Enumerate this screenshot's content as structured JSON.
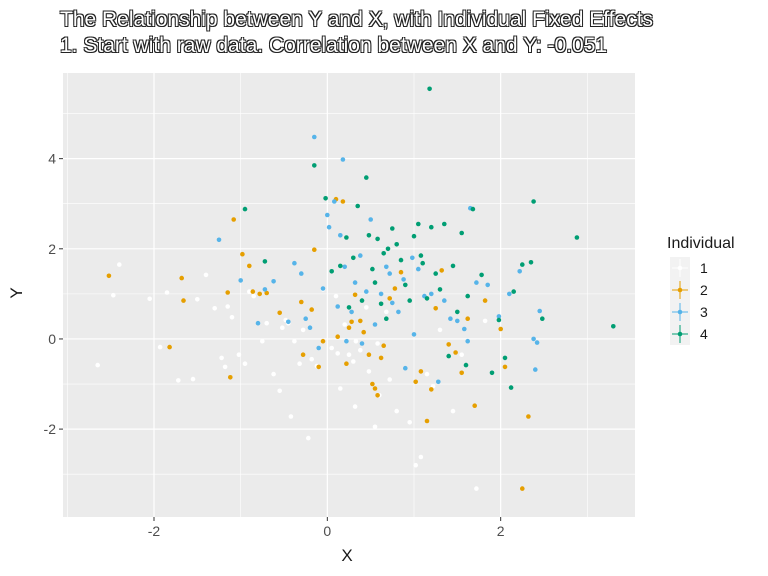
{
  "chart_data": {
    "type": "scatter",
    "title": "The Relationship between Y and X, with Individual Fixed Effects",
    "subtitle": "1. Start with raw data. Correlation between X and Y: -0.051",
    "xlabel": "X",
    "ylabel": "Y",
    "xlim": [
      -3.05,
      3.55
    ],
    "ylim": [
      -3.95,
      5.9
    ],
    "xticks": [
      -2,
      0,
      2
    ],
    "yticks": [
      -2,
      0,
      2,
      4
    ],
    "grid": true,
    "legend": {
      "title": "Individual",
      "placement": "right"
    },
    "colors": {
      "panel": "#ebebeb",
      "grid": "#ffffff"
    },
    "series": [
      {
        "name": "1",
        "color": "#ffffff",
        "points": [
          [
            -2.65,
            -0.58
          ],
          [
            -2.47,
            0.97
          ],
          [
            -2.4,
            1.65
          ],
          [
            -2.05,
            0.89
          ],
          [
            -1.93,
            -0.18
          ],
          [
            -1.85,
            1.03
          ],
          [
            -1.72,
            -0.92
          ],
          [
            -1.55,
            -0.89
          ],
          [
            -1.5,
            0.88
          ],
          [
            -1.4,
            1.42
          ],
          [
            -1.3,
            0.68
          ],
          [
            -1.22,
            -0.42
          ],
          [
            -1.18,
            -0.62
          ],
          [
            -1.1,
            0.48
          ],
          [
            -1.02,
            -0.35
          ],
          [
            -0.9,
            1.05
          ],
          [
            -0.85,
            0.95
          ],
          [
            -0.75,
            -0.05
          ],
          [
            -0.7,
            0.35
          ],
          [
            -0.62,
            -0.78
          ],
          [
            -0.55,
            -1.15
          ],
          [
            -0.52,
            0.25
          ],
          [
            -0.48,
            0.42
          ],
          [
            -0.45,
            0.35
          ],
          [
            -0.38,
            -0.05
          ],
          [
            -0.32,
            -0.55
          ],
          [
            -0.28,
            0.2
          ],
          [
            -0.22,
            -2.2
          ],
          [
            -0.18,
            -0.45
          ],
          [
            -0.12,
            -0.6
          ],
          [
            -0.05,
            1.1
          ],
          [
            0.05,
            -0.2
          ],
          [
            0.1,
            0.95
          ],
          [
            0.15,
            -1.1
          ],
          [
            0.2,
            0.32
          ],
          [
            0.25,
            -0.35
          ],
          [
            0.3,
            -0.5
          ],
          [
            0.33,
            -0.05
          ],
          [
            0.38,
            -0.25
          ],
          [
            0.45,
            0.7
          ],
          [
            0.55,
            -1.95
          ],
          [
            0.58,
            -0.1
          ],
          [
            0.68,
            0.6
          ],
          [
            0.72,
            -0.9
          ],
          [
            0.8,
            -1.6
          ],
          [
            0.95,
            -1.85
          ],
          [
            1.02,
            -2.8
          ],
          [
            1.08,
            -2.62
          ],
          [
            1.15,
            -0.78
          ],
          [
            1.22,
            -1.05
          ],
          [
            1.3,
            0.2
          ],
          [
            1.45,
            -1.6
          ],
          [
            1.55,
            -0.35
          ],
          [
            1.72,
            -3.32
          ],
          [
            1.82,
            0.4
          ],
          [
            0.32,
            -1.5
          ],
          [
            -0.42,
            -1.72
          ],
          [
            0.6,
            -1.25
          ],
          [
            -1.15,
            0.72
          ],
          [
            -0.95,
            -0.55
          ],
          [
            0.12,
            -0.32
          ],
          [
            0.48,
            -0.72
          ]
        ]
      },
      {
        "name": "2",
        "color": "#e69f00",
        "points": [
          [
            -2.52,
            1.4
          ],
          [
            -1.82,
            -0.18
          ],
          [
            -1.68,
            1.35
          ],
          [
            -1.66,
            0.85
          ],
          [
            -1.15,
            1.03
          ],
          [
            -1.12,
            -0.85
          ],
          [
            -1.08,
            2.65
          ],
          [
            -0.98,
            1.88
          ],
          [
            -0.9,
            1.62
          ],
          [
            -0.86,
            1.05
          ],
          [
            -0.78,
            1.0
          ],
          [
            -0.7,
            1.02
          ],
          [
            -0.55,
            0.58
          ],
          [
            -0.3,
            0.82
          ],
          [
            -0.28,
            -0.35
          ],
          [
            -0.18,
            0.65
          ],
          [
            -0.15,
            1.98
          ],
          [
            -0.1,
            -0.62
          ],
          [
            -0.05,
            -0.05
          ],
          [
            0.1,
            3.1
          ],
          [
            0.12,
            0.05
          ],
          [
            0.22,
            -0.55
          ],
          [
            0.25,
            0.25
          ],
          [
            0.28,
            0.38
          ],
          [
            0.32,
            0.98
          ],
          [
            0.38,
            0.4
          ],
          [
            0.42,
            0.15
          ],
          [
            0.48,
            -0.35
          ],
          [
            0.55,
            -1.1
          ],
          [
            0.58,
            -1.25
          ],
          [
            0.62,
            -0.42
          ],
          [
            0.65,
            -0.15
          ],
          [
            0.72,
            0.9
          ],
          [
            0.78,
            1.12
          ],
          [
            0.85,
            1.48
          ],
          [
            1.02,
            -0.95
          ],
          [
            1.08,
            -0.72
          ],
          [
            1.15,
            -1.82
          ],
          [
            1.2,
            -1.12
          ],
          [
            1.25,
            0.68
          ],
          [
            1.32,
            1.52
          ],
          [
            1.4,
            -0.12
          ],
          [
            1.48,
            -0.3
          ],
          [
            1.55,
            -0.75
          ],
          [
            1.62,
            0.45
          ],
          [
            1.7,
            -1.48
          ],
          [
            2.0,
            0.22
          ],
          [
            2.05,
            -0.62
          ],
          [
            2.25,
            -3.32
          ],
          [
            2.32,
            -1.72
          ],
          [
            0.18,
            3.05
          ],
          [
            0.52,
            -1.0
          ],
          [
            1.82,
            0.85
          ]
        ]
      },
      {
        "name": "3",
        "color": "#56b4e9",
        "points": [
          [
            -1.25,
            2.2
          ],
          [
            -1.0,
            1.3
          ],
          [
            -0.8,
            0.35
          ],
          [
            -0.62,
            1.28
          ],
          [
            -0.45,
            0.38
          ],
          [
            -0.38,
            1.68
          ],
          [
            -0.3,
            1.45
          ],
          [
            -0.25,
            0.45
          ],
          [
            -0.2,
            0.25
          ],
          [
            -0.15,
            4.48
          ],
          [
            -0.05,
            1.12
          ],
          [
            0.0,
            2.75
          ],
          [
            0.02,
            2.48
          ],
          [
            0.08,
            3.05
          ],
          [
            0.12,
            0.72
          ],
          [
            0.15,
            2.3
          ],
          [
            0.18,
            3.98
          ],
          [
            0.2,
            1.6
          ],
          [
            0.22,
            -0.05
          ],
          [
            0.28,
            0.6
          ],
          [
            0.32,
            1.25
          ],
          [
            0.38,
            1.85
          ],
          [
            0.45,
            1.05
          ],
          [
            0.5,
            2.65
          ],
          [
            0.55,
            0.32
          ],
          [
            0.62,
            1.0
          ],
          [
            0.68,
            1.6
          ],
          [
            0.72,
            1.45
          ],
          [
            0.75,
            0.8
          ],
          [
            0.82,
            0.6
          ],
          [
            0.9,
            -0.65
          ],
          [
            0.98,
            1.8
          ],
          [
            1.05,
            1.55
          ],
          [
            1.12,
            0.95
          ],
          [
            1.2,
            1.0
          ],
          [
            1.28,
            -0.95
          ],
          [
            1.35,
            0.85
          ],
          [
            1.42,
            0.45
          ],
          [
            1.5,
            0.4
          ],
          [
            1.58,
            0.22
          ],
          [
            1.65,
            2.9
          ],
          [
            1.72,
            1.25
          ],
          [
            1.85,
            1.2
          ],
          [
            1.98,
            0.5
          ],
          [
            2.1,
            1.0
          ],
          [
            2.22,
            1.5
          ],
          [
            2.38,
            0.0
          ],
          [
            2.42,
            -0.08
          ],
          [
            2.45,
            0.62
          ],
          [
            2.4,
            -0.68
          ],
          [
            -0.72,
            1.1
          ],
          [
            0.88,
            1.32
          ],
          [
            1.62,
            -0.05
          ],
          [
            -0.1,
            -0.2
          ],
          [
            0.4,
            -0.1
          ],
          [
            1.0,
            0.1
          ]
        ]
      },
      {
        "name": "4",
        "color": "#009e73",
        "points": [
          [
            -0.95,
            2.88
          ],
          [
            -0.72,
            1.72
          ],
          [
            -0.15,
            3.85
          ],
          [
            0.05,
            1.5
          ],
          [
            0.15,
            1.62
          ],
          [
            0.22,
            2.25
          ],
          [
            0.3,
            1.8
          ],
          [
            0.35,
            2.95
          ],
          [
            0.4,
            0.85
          ],
          [
            0.45,
            3.58
          ],
          [
            0.48,
            2.3
          ],
          [
            0.52,
            1.55
          ],
          [
            0.55,
            1.25
          ],
          [
            0.58,
            2.22
          ],
          [
            0.62,
            0.78
          ],
          [
            0.65,
            1.9
          ],
          [
            0.7,
            2.0
          ],
          [
            0.75,
            2.45
          ],
          [
            0.8,
            2.1
          ],
          [
            0.85,
            1.75
          ],
          [
            0.9,
            1.2
          ],
          [
            0.95,
            0.85
          ],
          [
            1.0,
            2.28
          ],
          [
            1.05,
            2.55
          ],
          [
            1.1,
            1.68
          ],
          [
            1.15,
            0.9
          ],
          [
            1.18,
            5.55
          ],
          [
            1.2,
            2.48
          ],
          [
            1.25,
            1.45
          ],
          [
            1.3,
            1.1
          ],
          [
            1.35,
            2.55
          ],
          [
            1.4,
            -0.38
          ],
          [
            1.45,
            1.62
          ],
          [
            1.5,
            0.6
          ],
          [
            1.55,
            2.35
          ],
          [
            1.6,
            -0.58
          ],
          [
            1.68,
            2.88
          ],
          [
            1.78,
            1.42
          ],
          [
            1.9,
            -0.75
          ],
          [
            1.98,
            0.42
          ],
          [
            2.05,
            -0.42
          ],
          [
            2.12,
            -1.08
          ],
          [
            2.15,
            1.05
          ],
          [
            2.25,
            1.65
          ],
          [
            2.35,
            1.7
          ],
          [
            2.38,
            3.05
          ],
          [
            2.48,
            0.45
          ],
          [
            2.88,
            2.25
          ],
          [
            3.3,
            0.28
          ],
          [
            0.25,
            0.7
          ],
          [
            0.68,
            0.45
          ],
          [
            1.08,
            1.85
          ],
          [
            -0.02,
            3.12
          ],
          [
            1.62,
            0.95
          ]
        ]
      }
    ]
  }
}
